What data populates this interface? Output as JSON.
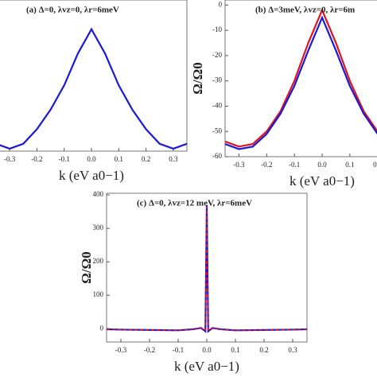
{
  "chart_data": [
    {
      "type": "line",
      "title": "(a) Δ=0, λvz=0, λr=6meV",
      "x_label": "k (eV a0−1)",
      "x": [
        -0.35,
        -0.3,
        -0.25,
        -0.2,
        -0.15,
        -0.1,
        -0.05,
        0,
        0.05,
        0.1,
        0.15,
        0.2,
        0.25,
        0.3,
        0.35
      ],
      "series": [
        {
          "name": "blue",
          "color": "#1a1ad6",
          "values": [
            -57,
            -59,
            -57,
            -51,
            -43,
            -33,
            -20,
            -10,
            -20,
            -33,
            -43,
            -51,
            -57,
            -59,
            -57
          ]
        }
      ],
      "xlim": [
        -0.35,
        0.35
      ],
      "ylim": [
        -60,
        2
      ],
      "xticks": [
        -0.3,
        -0.2,
        -0.1,
        {
          "value": 0,
          "label": "0.0"
        },
        0.1,
        0.2,
        0.3
      ]
    },
    {
      "type": "line",
      "title": "(b) Δ=3meV, λvz=0, λr=6m",
      "x_label": "k (eV a0−1)",
      "y_label": "Ω/Ω0",
      "x": [
        -0.35,
        -0.3,
        -0.25,
        -0.2,
        -0.15,
        -0.1,
        -0.05,
        0,
        0.05,
        0.1,
        0.15,
        0.2,
        0.25,
        0.3,
        0.35
      ],
      "series": [
        {
          "name": "red",
          "color": "#e0141e",
          "values": [
            -54,
            -56,
            -55,
            -50,
            -42,
            -30,
            -15,
            -2,
            -15,
            -30,
            -42,
            -50,
            -55,
            -56,
            -54
          ]
        },
        {
          "name": "blue",
          "color": "#1a1ad6",
          "values": [
            -55,
            -57,
            -56,
            -51,
            -43,
            -32,
            -18,
            -5,
            -18,
            -32,
            -43,
            -51,
            -56,
            -57,
            -55
          ]
        }
      ],
      "xlim": [
        -0.35,
        0.35
      ],
      "ylim": [
        -60,
        2
      ],
      "xticks": [
        -0.3,
        -0.2,
        -0.1,
        {
          "value": 0,
          "label": "0.0"
        },
        0.1,
        0.2
      ],
      "yticks": [
        0,
        -10,
        -20,
        -30,
        -40,
        -50,
        -60
      ]
    },
    {
      "type": "line",
      "title": "(c) Δ=0, λvz=12 meV, λr=6meV",
      "x_label": "k (eV a0−1)",
      "y_label": "Ω/Ω0",
      "x": [
        -0.35,
        -0.3,
        -0.2,
        -0.1,
        -0.05,
        -0.02,
        -0.005,
        0,
        0.005,
        0.02,
        0.05,
        0.1,
        0.2,
        0.3,
        0.35
      ],
      "series": [
        {
          "name": "blue",
          "color": "#1a1ad6",
          "values": [
            -2,
            -3,
            -4,
            -5,
            -2,
            2,
            -8,
            370,
            -8,
            2,
            -2,
            -5,
            -4,
            -3,
            -2
          ]
        },
        {
          "name": "red",
          "color": "#e0141e",
          "dashed": true,
          "values": [
            -2,
            -3,
            -4,
            -5,
            -2,
            3,
            -7,
            365,
            -7,
            3,
            -2,
            -5,
            -4,
            -3,
            -2
          ]
        }
      ],
      "xlim": [
        -0.35,
        0.35
      ],
      "ylim": [
        -40,
        405
      ],
      "xticks": [
        -0.3,
        -0.2,
        -0.1,
        {
          "value": 0,
          "label": "0.0"
        },
        0.1,
        0.2,
        0.3
      ],
      "yticks": [
        0,
        100,
        200,
        300,
        400
      ]
    }
  ]
}
